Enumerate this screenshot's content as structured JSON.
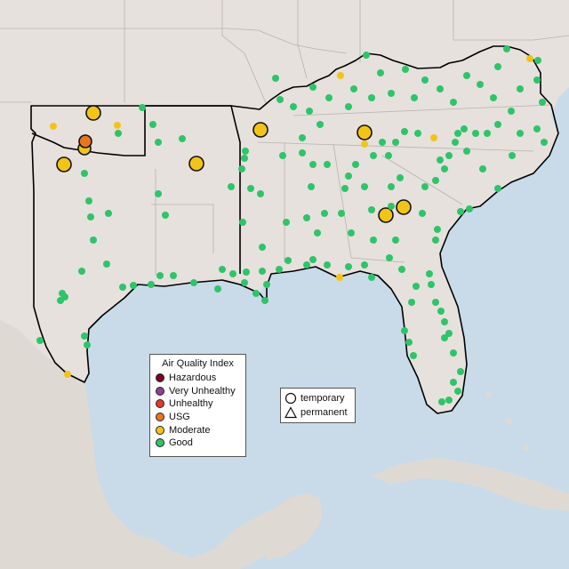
{
  "aqi_legend": {
    "title": "Air Quality Index",
    "items": [
      {
        "label": "Hazardous",
        "color": "#7e0023"
      },
      {
        "label": "Very Unhealthy",
        "color": "#8f3f97"
      },
      {
        "label": "Unhealthy",
        "color": "#e8372c"
      },
      {
        "label": "USG",
        "color": "#e8761f"
      },
      {
        "label": "Moderate",
        "color": "#f2c418"
      },
      {
        "label": "Good",
        "color": "#2fc46a"
      }
    ]
  },
  "site_legend": {
    "items": [
      {
        "label": "temporary",
        "icon": "circle-icon"
      },
      {
        "label": "permanent",
        "icon": "triangle-icon"
      }
    ]
  },
  "colors": {
    "ocean": "#c9dbe8",
    "land": "#e6e1dd",
    "mexico_land": "#dedad3",
    "boundary": "#000000",
    "state_border": "#b8b2ac"
  }
}
